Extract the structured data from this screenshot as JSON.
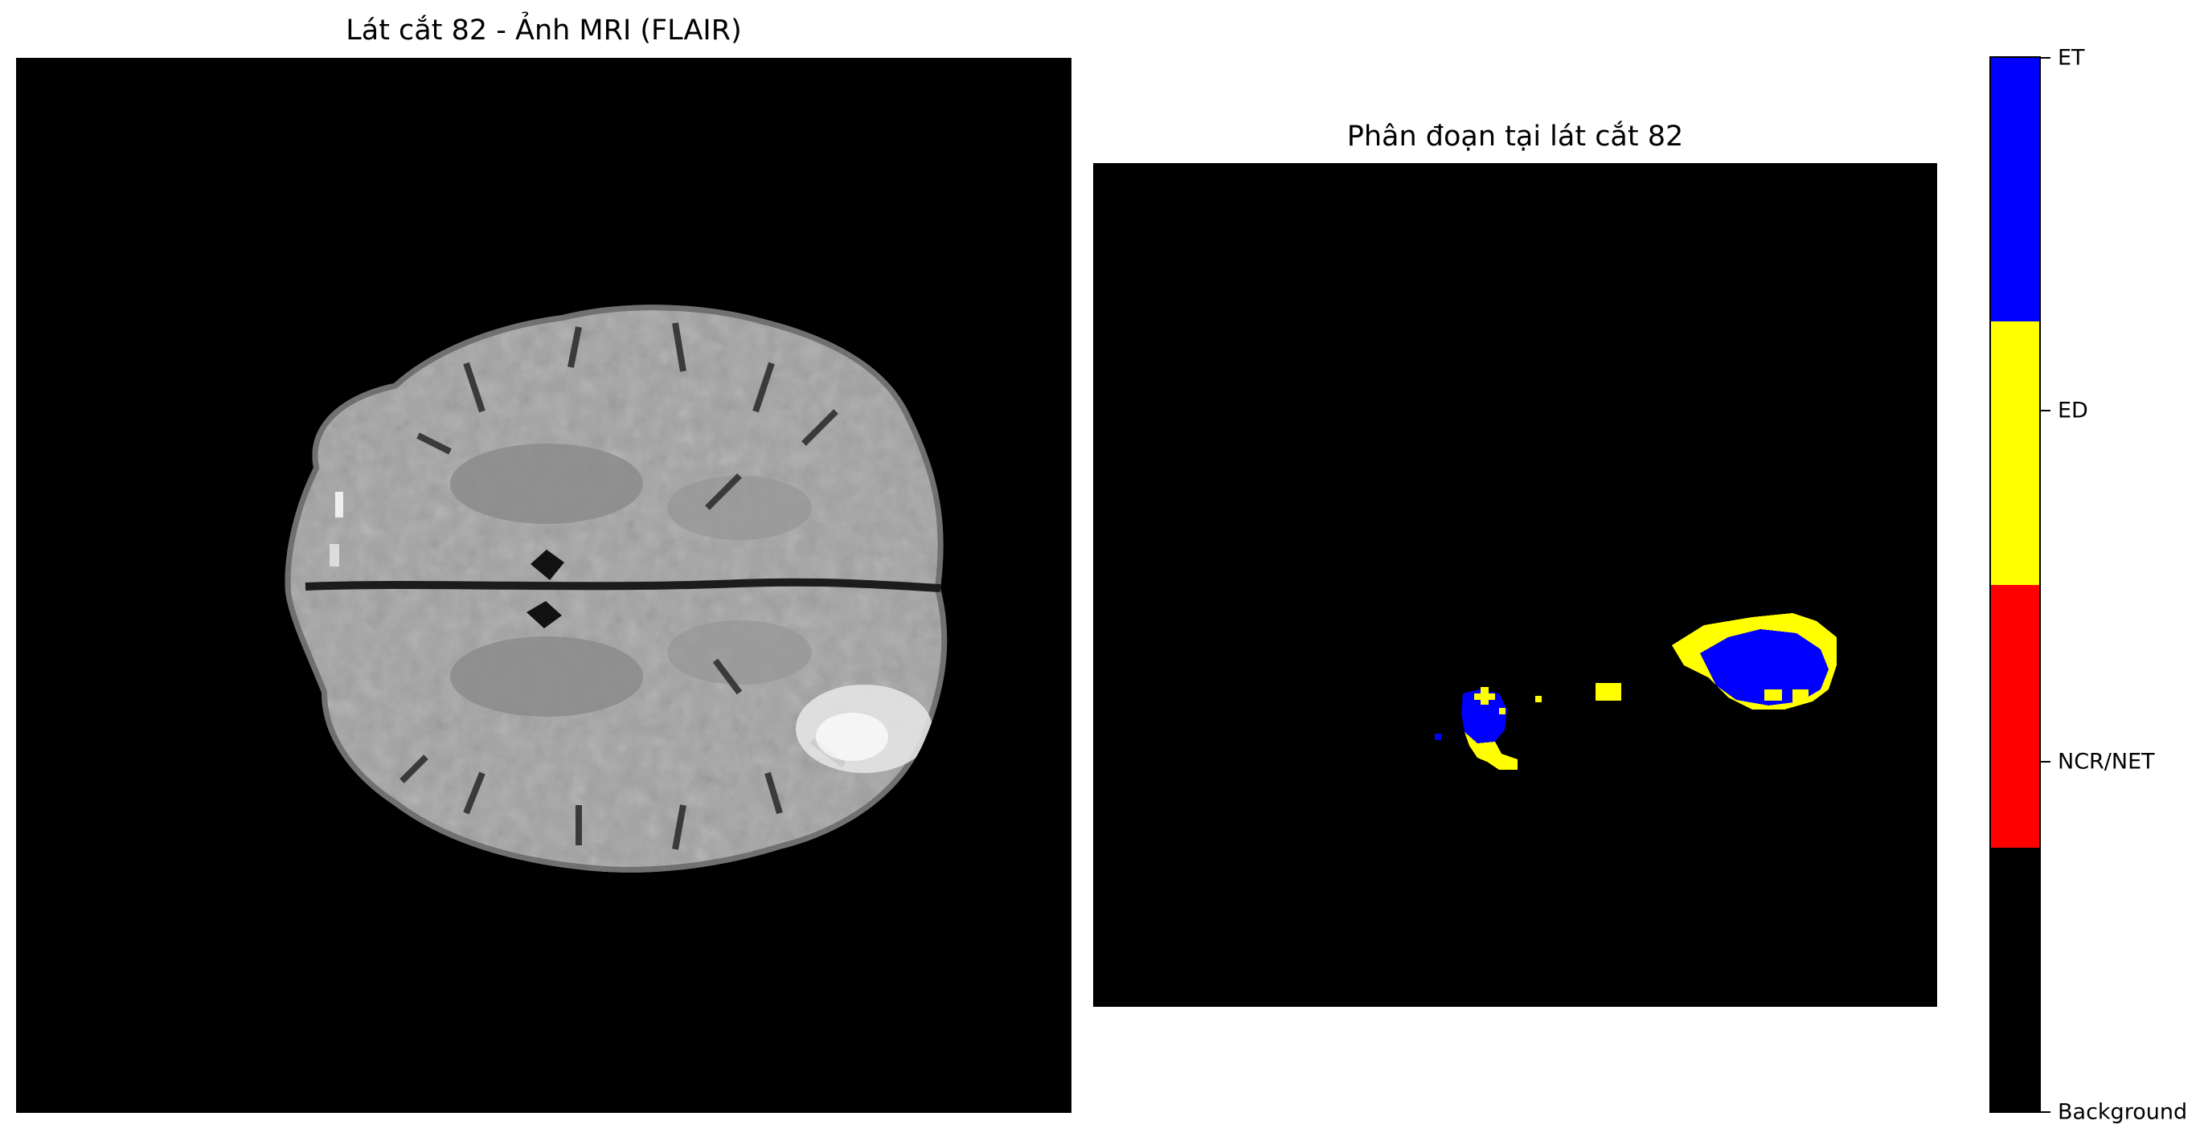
{
  "left_panel": {
    "title": "Lát cắt 82 - Ảnh MRI (FLAIR)"
  },
  "right_panel": {
    "title": "Phân đoạn tại lát cắt 82"
  },
  "colorbar": {
    "labels": [
      "ET",
      "ED",
      "NCR/NET",
      "Background"
    ],
    "colors": [
      "#0000ff",
      "#ffff00",
      "#ff0000",
      "#000000"
    ]
  }
}
